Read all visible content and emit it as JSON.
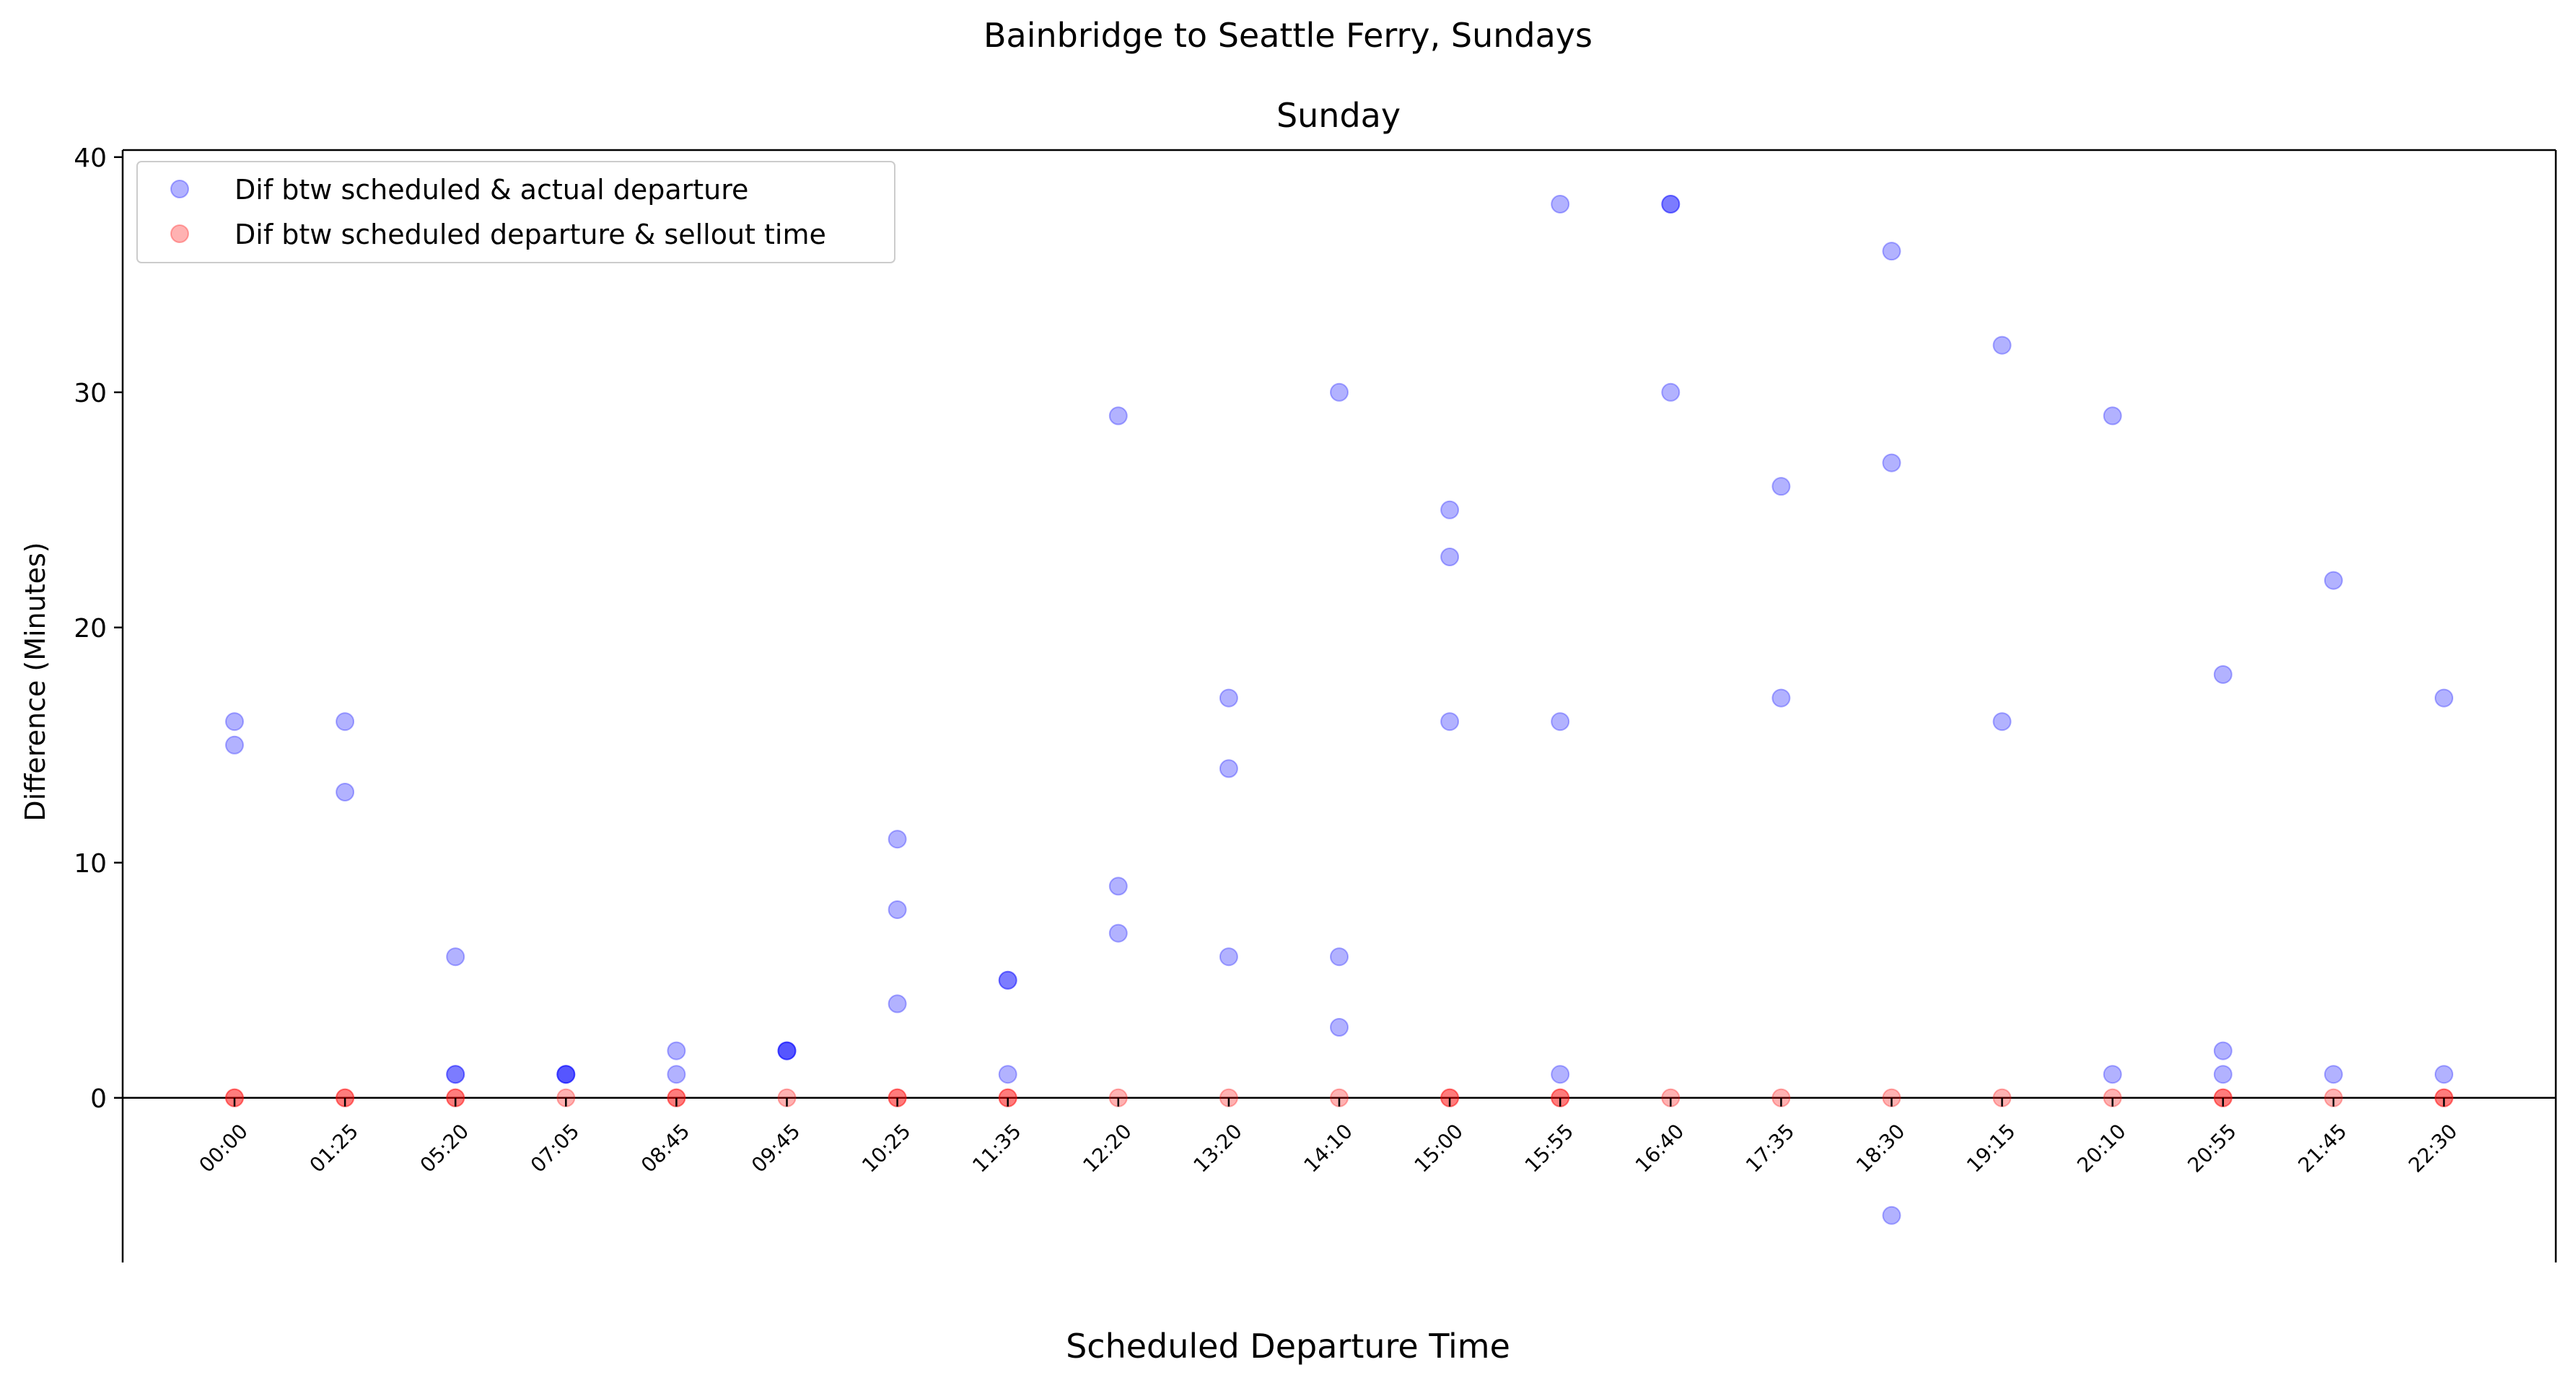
{
  "suptitle": "Bainbridge to Seattle Ferry, Sundays",
  "chart_data": {
    "type": "scatter",
    "title": "Sunday",
    "xlabel": "Scheduled Departure Time",
    "ylabel": "Difference (Minutes)",
    "ylim": [
      -7,
      40.3
    ],
    "yticks": [
      0,
      10,
      20,
      30,
      40
    ],
    "grid": false,
    "legend_position": "top-left",
    "categories": [
      "00:00",
      "01:25",
      "05:20",
      "07:05",
      "08:45",
      "09:45",
      "10:25",
      "11:35",
      "12:20",
      "13:20",
      "14:10",
      "15:00",
      "15:55",
      "16:40",
      "17:35",
      "18:30",
      "19:15",
      "20:10",
      "20:55",
      "21:45",
      "22:30"
    ],
    "series": [
      {
        "name": "Dif btw scheduled & actual departure",
        "color": "#0000ff",
        "points": [
          [
            "00:00",
            16
          ],
          [
            "00:00",
            15
          ],
          [
            "01:25",
            16
          ],
          [
            "01:25",
            13
          ],
          [
            "05:20",
            6
          ],
          [
            "05:20",
            1
          ],
          [
            "05:20",
            1
          ],
          [
            "07:05",
            1
          ],
          [
            "07:05",
            1
          ],
          [
            "07:05",
            1
          ],
          [
            "08:45",
            2
          ],
          [
            "08:45",
            1
          ],
          [
            "09:45",
            2
          ],
          [
            "09:45",
            2
          ],
          [
            "09:45",
            2
          ],
          [
            "10:25",
            11
          ],
          [
            "10:25",
            8
          ],
          [
            "10:25",
            4
          ],
          [
            "11:35",
            5
          ],
          [
            "11:35",
            5
          ],
          [
            "11:35",
            1
          ],
          [
            "12:20",
            29
          ],
          [
            "12:20",
            9
          ],
          [
            "12:20",
            7
          ],
          [
            "13:20",
            17
          ],
          [
            "13:20",
            14
          ],
          [
            "13:20",
            6
          ],
          [
            "14:10",
            30
          ],
          [
            "14:10",
            6
          ],
          [
            "14:10",
            3
          ],
          [
            "15:00",
            25
          ],
          [
            "15:00",
            23
          ],
          [
            "15:00",
            16
          ],
          [
            "15:55",
            38
          ],
          [
            "15:55",
            16
          ],
          [
            "15:55",
            1
          ],
          [
            "16:40",
            38
          ],
          [
            "16:40",
            38
          ],
          [
            "16:40",
            30
          ],
          [
            "17:35",
            26
          ],
          [
            "17:35",
            17
          ],
          [
            "18:30",
            36
          ],
          [
            "18:30",
            27
          ],
          [
            "18:30",
            -5
          ],
          [
            "19:15",
            32
          ],
          [
            "19:15",
            16
          ],
          [
            "20:10",
            29
          ],
          [
            "20:10",
            1
          ],
          [
            "20:55",
            18
          ],
          [
            "20:55",
            2
          ],
          [
            "20:55",
            1
          ],
          [
            "21:45",
            22
          ],
          [
            "21:45",
            1
          ],
          [
            "22:30",
            17
          ],
          [
            "22:30",
            1
          ]
        ]
      },
      {
        "name": "Dif btw scheduled departure & sellout time",
        "color": "#ff0000",
        "points": [
          [
            "00:00",
            0
          ],
          [
            "00:00",
            0
          ],
          [
            "01:25",
            0
          ],
          [
            "01:25",
            0
          ],
          [
            "05:20",
            0
          ],
          [
            "05:20",
            0
          ],
          [
            "07:05",
            0
          ],
          [
            "08:45",
            0
          ],
          [
            "08:45",
            0
          ],
          [
            "09:45",
            0
          ],
          [
            "10:25",
            0
          ],
          [
            "10:25",
            0
          ],
          [
            "11:35",
            0
          ],
          [
            "11:35",
            0
          ],
          [
            "12:20",
            0
          ],
          [
            "13:20",
            0
          ],
          [
            "14:10",
            0
          ],
          [
            "15:00",
            0
          ],
          [
            "15:00",
            0
          ],
          [
            "15:55",
            0
          ],
          [
            "15:55",
            0
          ],
          [
            "16:40",
            0
          ],
          [
            "17:35",
            0
          ],
          [
            "18:30",
            0
          ],
          [
            "19:15",
            0
          ],
          [
            "20:10",
            0
          ],
          [
            "20:55",
            0
          ],
          [
            "20:55",
            0
          ],
          [
            "21:45",
            0
          ],
          [
            "22:30",
            0
          ],
          [
            "22:30",
            0
          ]
        ]
      }
    ],
    "hline": 0
  }
}
